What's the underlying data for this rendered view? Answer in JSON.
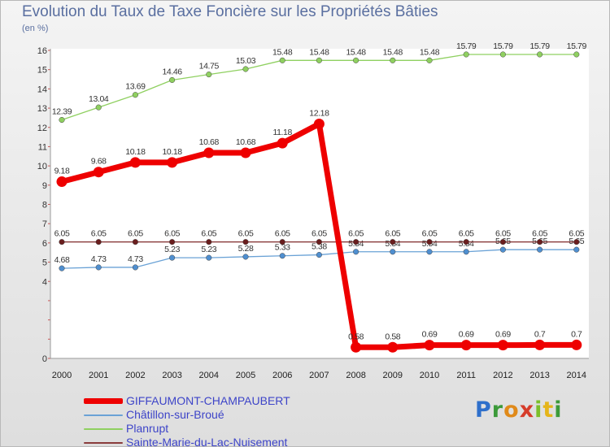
{
  "title": "Evolution du Taux de Taxe Foncière sur les Propriétés Bâties",
  "unit_label": "(en %)",
  "logo_text": "Proxiti",
  "chart_data": {
    "type": "line",
    "title": "Evolution du Taux de Taxe Foncière sur les Propriétés Bâties",
    "ylabel": "(en %)",
    "xlabel": "",
    "ylim": [
      0,
      16
    ],
    "yticks": [
      0,
      1,
      2,
      3,
      4,
      5,
      6,
      7,
      8,
      9,
      10,
      11,
      12,
      13,
      14,
      15,
      16
    ],
    "ytick_labels": [
      "0",
      "",
      "",
      "",
      "4",
      "5",
      "6",
      "7",
      "8",
      "9",
      "10",
      "11",
      "12",
      "13",
      "14",
      "15",
      "16"
    ],
    "categories": [
      "2000",
      "2001",
      "2002",
      "2003",
      "2004",
      "2005",
      "2006",
      "2007",
      "2008",
      "2009",
      "2010",
      "2011",
      "2012",
      "2013",
      "2014"
    ],
    "legend_position": "bottom-left",
    "series": [
      {
        "name": "Planrupt",
        "color": "#8fd060",
        "marker": "#8fd060",
        "values": [
          12.39,
          13.04,
          13.69,
          14.46,
          14.75,
          15.03,
          15.48,
          15.48,
          15.48,
          15.48,
          15.48,
          15.79,
          15.79,
          15.79,
          15.79
        ],
        "labels": [
          "12.39",
          "13.04",
          "13.69",
          "14.46",
          "14.75",
          "15.03",
          "15.48",
          "15.48",
          "15.48",
          "15.48",
          "15.48",
          "15.79",
          "15.79",
          "15.79",
          "15.79"
        ]
      },
      {
        "name": "Châtillon-sur-Broué",
        "color": "#6aa2d6",
        "marker": "#4f8fd0",
        "values": [
          4.68,
          4.73,
          4.73,
          5.23,
          5.23,
          5.28,
          5.33,
          5.38,
          5.54,
          5.54,
          5.54,
          5.54,
          5.65,
          5.65,
          5.65
        ],
        "labels": [
          "4.68",
          "4.73",
          "4.73",
          "5.23",
          "5.23",
          "5.28",
          "5.33",
          "5.38",
          "5.54",
          "5.54",
          "5.54",
          "5.54",
          "5.65",
          "5.65",
          "5.65"
        ]
      },
      {
        "name": "Sainte-Marie-du-Lac-Nuisement",
        "color": "#8a3c3c",
        "marker": "#6a1e1e",
        "values": [
          6.05,
          6.05,
          6.05,
          6.05,
          6.05,
          6.05,
          6.05,
          6.05,
          6.05,
          6.05,
          6.05,
          6.05,
          6.05,
          6.05,
          6.05
        ],
        "labels": [
          "6.05",
          "6.05",
          "6.05",
          "6.05",
          "6.05",
          "6.05",
          "6.05",
          "6.05",
          "6.05",
          "6.05",
          "6.05",
          "6.05",
          "6.05",
          "6.05",
          "6.05"
        ]
      },
      {
        "name": "GIFFAUMONT-CHAMPAUBERT",
        "color": "#ee0000",
        "marker": "#ee0000",
        "values": [
          9.18,
          9.68,
          10.18,
          10.18,
          10.68,
          10.68,
          11.18,
          12.18,
          0.58,
          0.58,
          0.69,
          0.69,
          0.69,
          0.7,
          0.7
        ],
        "labels": [
          "9.18",
          "9.68",
          "10.18",
          "10.18",
          "10.68",
          "10.68",
          "11.18",
          "12.18",
          "0.58",
          "0.58",
          "0.69",
          "0.69",
          "0.69",
          "0.7",
          "0.7"
        ]
      }
    ],
    "legend_order": [
      "GIFFAUMONT-CHAMPAUBERT",
      "Châtillon-sur-Broué",
      "Planrupt",
      "Sainte-Marie-du-Lac-Nuisement"
    ]
  }
}
